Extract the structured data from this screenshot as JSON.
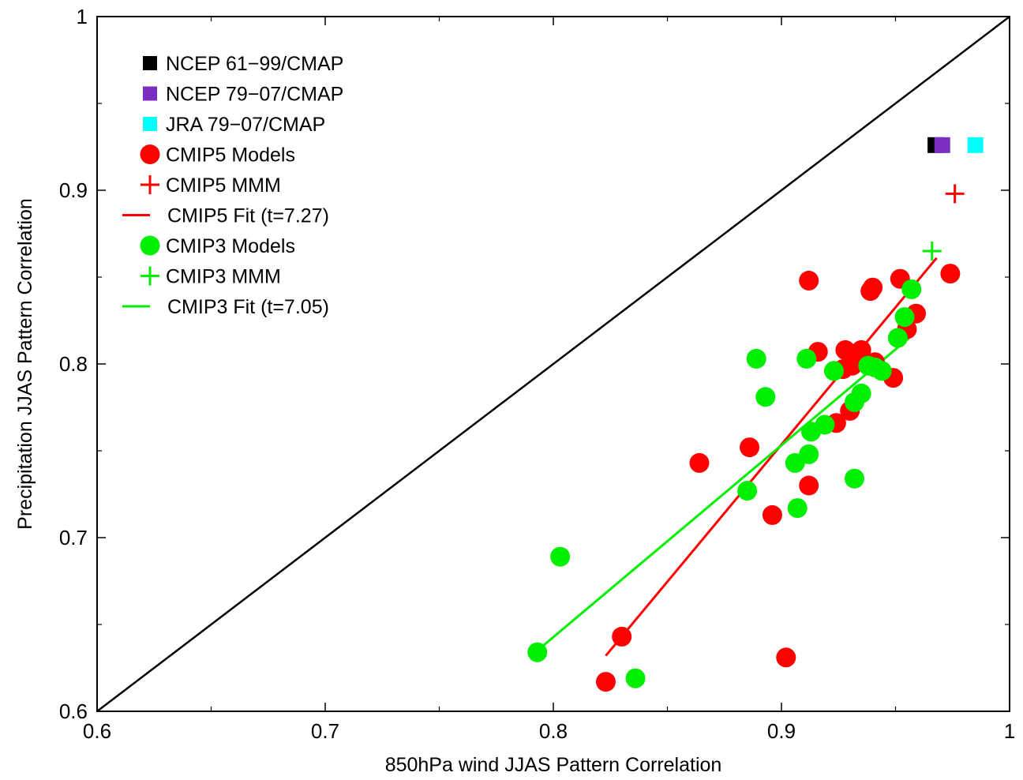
{
  "chart_data": {
    "type": "scatter",
    "xlabel": "850hPa wind JJAS Pattern Correlation",
    "ylabel": "Precipitation JJAS Pattern Correlation",
    "xlim": [
      0.6,
      1.0
    ],
    "ylim": [
      0.6,
      1.0
    ],
    "x_ticks": [
      "0.6",
      "0.7",
      "0.8",
      "0.9",
      "1"
    ],
    "y_ticks": [
      "0.6",
      "0.7",
      "0.8",
      "0.9",
      "1"
    ],
    "grid": false,
    "legend_position": "top-left",
    "reference_line": {
      "from": [
        0.6,
        0.6
      ],
      "to": [
        1.0,
        1.0
      ],
      "color": "#000000"
    },
    "legend": [
      {
        "label": "NCEP 61−99/CMAP",
        "marker": "square",
        "color": "#000000"
      },
      {
        "label": "NCEP 79−07/CMAP",
        "marker": "square",
        "color": "#7a2fc2"
      },
      {
        "label": "JRA 79−07/CMAP",
        "marker": "square",
        "color": "#00ffff"
      },
      {
        "label": "CMIP5 Models",
        "marker": "circle",
        "color": "#ff0000"
      },
      {
        "label": "CMIP5 MMM",
        "marker": "plus",
        "color": "#ff0000"
      },
      {
        "label": "CMIP5 Fit (t=7.27)",
        "marker": "line",
        "color": "#ff0000"
      },
      {
        "label": "CMIP3 Models",
        "marker": "circle",
        "color": "#00ee00"
      },
      {
        "label": "CMIP3 MMM",
        "marker": "plus",
        "color": "#00ee00"
      },
      {
        "label": "CMIP3 Fit (t=7.05)",
        "marker": "line",
        "color": "#00ee00"
      }
    ],
    "series": [
      {
        "name": "NCEP 61−99/CMAP",
        "marker": "square",
        "color": "#000000",
        "points": [
          [
            0.9675,
            0.926
          ]
        ]
      },
      {
        "name": "NCEP 79−07/CMAP",
        "marker": "square",
        "color": "#7a2fc2",
        "points": [
          [
            0.9705,
            0.926
          ]
        ]
      },
      {
        "name": "JRA 79−07/CMAP",
        "marker": "square",
        "color": "#00ffff",
        "points": [
          [
            0.985,
            0.926
          ]
        ]
      },
      {
        "name": "CMIP5 Models",
        "marker": "circle",
        "color": "#ff0000",
        "points": [
          [
            0.912,
            0.848
          ],
          [
            0.94,
            0.844
          ],
          [
            0.939,
            0.842
          ],
          [
            0.952,
            0.849
          ],
          [
            0.974,
            0.852
          ],
          [
            0.959,
            0.829
          ],
          [
            0.955,
            0.82
          ],
          [
            0.916,
            0.807
          ],
          [
            0.928,
            0.808
          ],
          [
            0.935,
            0.808
          ],
          [
            0.931,
            0.799
          ],
          [
            0.941,
            0.801
          ],
          [
            0.949,
            0.792
          ],
          [
            0.927,
            0.797
          ],
          [
            0.93,
            0.773
          ],
          [
            0.924,
            0.766
          ],
          [
            0.864,
            0.743
          ],
          [
            0.886,
            0.752
          ],
          [
            0.912,
            0.73
          ],
          [
            0.896,
            0.713
          ],
          [
            0.83,
            0.643
          ],
          [
            0.823,
            0.617
          ],
          [
            0.902,
            0.631
          ]
        ]
      },
      {
        "name": "CMIP5 MMM",
        "marker": "plus",
        "color": "#ff0000",
        "points": [
          [
            0.976,
            0.898
          ]
        ]
      },
      {
        "name": "CMIP5 Fit (t=7.27)",
        "marker": "line",
        "color": "#ff0000",
        "points": [
          [
            0.823,
            0.632
          ],
          [
            0.968,
            0.861
          ]
        ]
      },
      {
        "name": "CMIP3 Models",
        "marker": "circle",
        "color": "#00ee00",
        "points": [
          [
            0.957,
            0.843
          ],
          [
            0.954,
            0.827
          ],
          [
            0.951,
            0.815
          ],
          [
            0.889,
            0.803
          ],
          [
            0.911,
            0.803
          ],
          [
            0.923,
            0.796
          ],
          [
            0.938,
            0.799
          ],
          [
            0.941,
            0.798
          ],
          [
            0.944,
            0.796
          ],
          [
            0.935,
            0.783
          ],
          [
            0.932,
            0.778
          ],
          [
            0.893,
            0.781
          ],
          [
            0.919,
            0.765
          ],
          [
            0.913,
            0.761
          ],
          [
            0.912,
            0.748
          ],
          [
            0.906,
            0.743
          ],
          [
            0.932,
            0.734
          ],
          [
            0.885,
            0.727
          ],
          [
            0.907,
            0.717
          ],
          [
            0.803,
            0.689
          ],
          [
            0.793,
            0.634
          ],
          [
            0.836,
            0.619
          ]
        ]
      },
      {
        "name": "CMIP3 MMM",
        "marker": "plus",
        "color": "#00ee00",
        "points": [
          [
            0.966,
            0.865
          ]
        ]
      },
      {
        "name": "CMIP3 Fit (t=7.05)",
        "marker": "line",
        "color": "#00ee00",
        "points": [
          [
            0.793,
            0.635
          ],
          [
            0.956,
            0.815
          ]
        ]
      }
    ]
  }
}
